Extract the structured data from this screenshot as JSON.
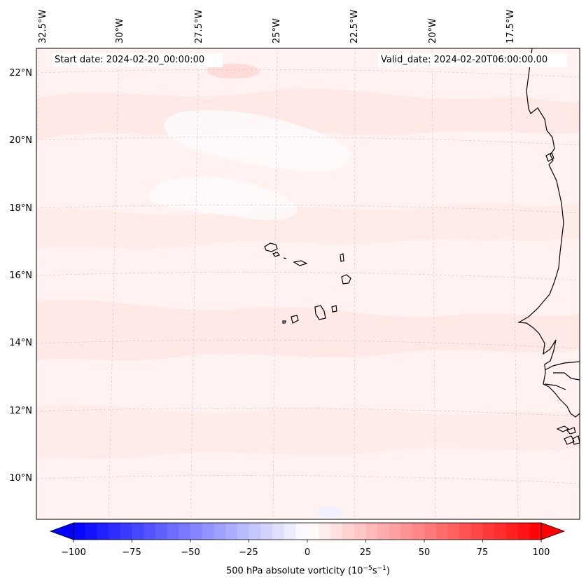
{
  "header": {
    "start_date": "Start date: 2024-02-20_00:00:00",
    "valid_date": "Valid_date: 2024-02-20T06:00:00.00"
  },
  "map": {
    "longitude_labels": [
      "32.5°W",
      "30°W",
      "27.5°W",
      "25°W",
      "22.5°W",
      "20°W",
      "17.5°W"
    ],
    "latitude_labels": [
      "22°N",
      "20°N",
      "18°N",
      "16°N",
      "14°N",
      "12°N",
      "10°N"
    ],
    "field": "500 hPa absolute vorticity",
    "background_color": "#fff3f1",
    "coastline_color": "#000000"
  },
  "colorbar": {
    "ticks": [
      "−100",
      "−75",
      "−50",
      "−25",
      "0",
      "25",
      "50",
      "75",
      "100"
    ],
    "label_text": "500 hPa absolute vorticity (10",
    "label_exp1": "−5",
    "label_mid": "s",
    "label_exp2": "−1",
    "label_end": ")",
    "min": -100,
    "max": 100,
    "low_color": "#0000ff",
    "mid_color": "#ffffff",
    "high_color": "#ff0000"
  }
}
